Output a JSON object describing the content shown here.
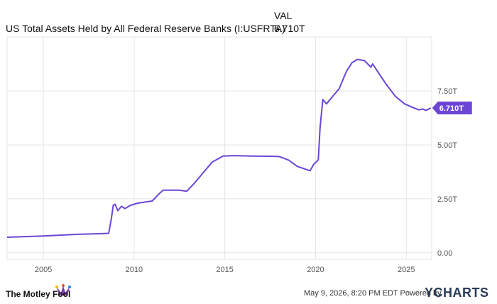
{
  "header": {
    "column_label": "VAL",
    "series_name": "US Total Assets Held by All Federal Reserve Banks (I:USFRTA)",
    "series_value": "6.710T"
  },
  "footer": {
    "brand": "The Motley Fool",
    "date_text": "May 9, 2026, 8:20 PM EDT Powered by",
    "ycharts": "YCHARTS"
  },
  "colors": {
    "line": "#6b46d6",
    "grid": "#e4e4e4",
    "axis_text": "#555555",
    "label_bg": "#6b46d6"
  },
  "chart_data": {
    "type": "line",
    "xlim": [
      2003.0,
      2026.4
    ],
    "ylim": [
      -0.3,
      10.0
    ],
    "x_ticks": [
      2005,
      2010,
      2015,
      2020,
      2025
    ],
    "y_ticks": [
      0,
      2.5,
      5.0,
      7.5
    ],
    "y_tick_labels": [
      "0.00",
      "2.50T",
      "5.00T",
      "7.50T"
    ],
    "end_label": "6.710T",
    "series": [
      {
        "values": [
          [
            2003.0,
            0.72
          ],
          [
            2004.0,
            0.75
          ],
          [
            2005.0,
            0.78
          ],
          [
            2006.0,
            0.82
          ],
          [
            2007.0,
            0.86
          ],
          [
            2008.0,
            0.88
          ],
          [
            2008.6,
            0.9
          ],
          [
            2008.75,
            1.6
          ],
          [
            2008.85,
            2.2
          ],
          [
            2008.95,
            2.25
          ],
          [
            2009.1,
            1.95
          ],
          [
            2009.3,
            2.15
          ],
          [
            2009.5,
            2.05
          ],
          [
            2009.8,
            2.2
          ],
          [
            2010.2,
            2.3
          ],
          [
            2010.6,
            2.35
          ],
          [
            2011.0,
            2.4
          ],
          [
            2011.4,
            2.75
          ],
          [
            2011.6,
            2.9
          ],
          [
            2012.0,
            2.9
          ],
          [
            2012.5,
            2.9
          ],
          [
            2012.9,
            2.85
          ],
          [
            2013.3,
            3.2
          ],
          [
            2013.8,
            3.7
          ],
          [
            2014.3,
            4.2
          ],
          [
            2014.9,
            4.48
          ],
          [
            2015.5,
            4.5
          ],
          [
            2016.5,
            4.48
          ],
          [
            2017.5,
            4.47
          ],
          [
            2018.0,
            4.46
          ],
          [
            2018.5,
            4.3
          ],
          [
            2019.0,
            4.0
          ],
          [
            2019.7,
            3.8
          ],
          [
            2019.9,
            4.1
          ],
          [
            2020.15,
            4.3
          ],
          [
            2020.25,
            5.8
          ],
          [
            2020.4,
            7.1
          ],
          [
            2020.6,
            6.9
          ],
          [
            2020.9,
            7.2
          ],
          [
            2021.3,
            7.6
          ],
          [
            2021.7,
            8.4
          ],
          [
            2022.0,
            8.8
          ],
          [
            2022.3,
            8.96
          ],
          [
            2022.7,
            8.9
          ],
          [
            2023.05,
            8.6
          ],
          [
            2023.15,
            8.75
          ],
          [
            2023.5,
            8.3
          ],
          [
            2023.9,
            7.8
          ],
          [
            2024.4,
            7.25
          ],
          [
            2024.9,
            6.9
          ],
          [
            2025.4,
            6.72
          ],
          [
            2025.7,
            6.62
          ],
          [
            2025.9,
            6.66
          ],
          [
            2026.1,
            6.6
          ],
          [
            2026.35,
            6.71
          ]
        ]
      }
    ]
  }
}
